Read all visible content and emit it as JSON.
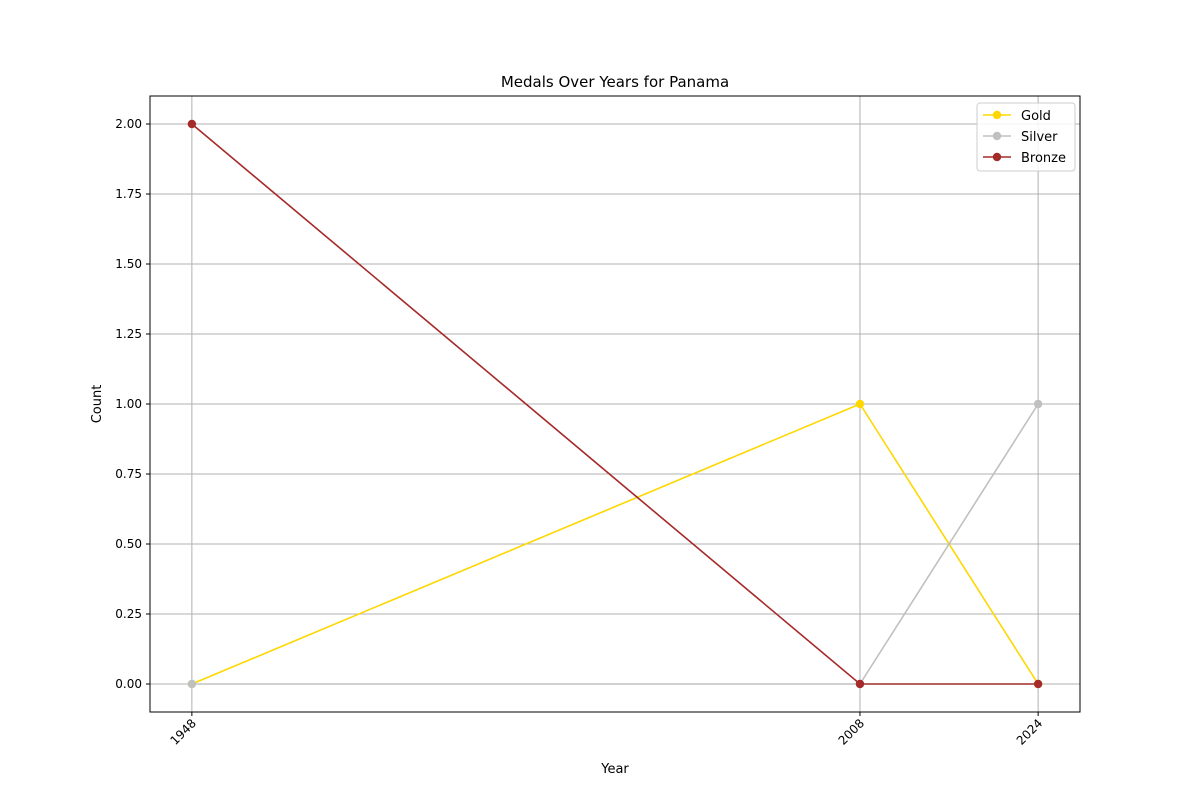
{
  "chart_data": {
    "type": "line",
    "title": "Medals Over Years for Panama",
    "xlabel": "Year",
    "ylabel": "Count",
    "x": [
      1948,
      2008,
      2024
    ],
    "x_tick_labels": [
      "1948",
      "2008",
      "2024"
    ],
    "y_ticks": [
      0.0,
      0.25,
      0.5,
      0.75,
      1.0,
      1.25,
      1.5,
      1.75,
      2.0
    ],
    "y_tick_labels": [
      "0.00",
      "0.25",
      "0.50",
      "0.75",
      "1.00",
      "1.25",
      "1.50",
      "1.75",
      "2.00"
    ],
    "ylim": [
      -0.1,
      2.1
    ],
    "xlim": [
      1944.24,
      2027.76
    ],
    "grid": true,
    "legend_position": "top-right",
    "series": [
      {
        "name": "Gold",
        "values": [
          0,
          1,
          0
        ],
        "color": "#ffd700"
      },
      {
        "name": "Silver",
        "values": [
          0,
          0,
          1
        ],
        "color": "#c0c0c0"
      },
      {
        "name": "Bronze",
        "values": [
          2,
          0,
          0
        ],
        "color": "#a52a2a"
      }
    ]
  }
}
